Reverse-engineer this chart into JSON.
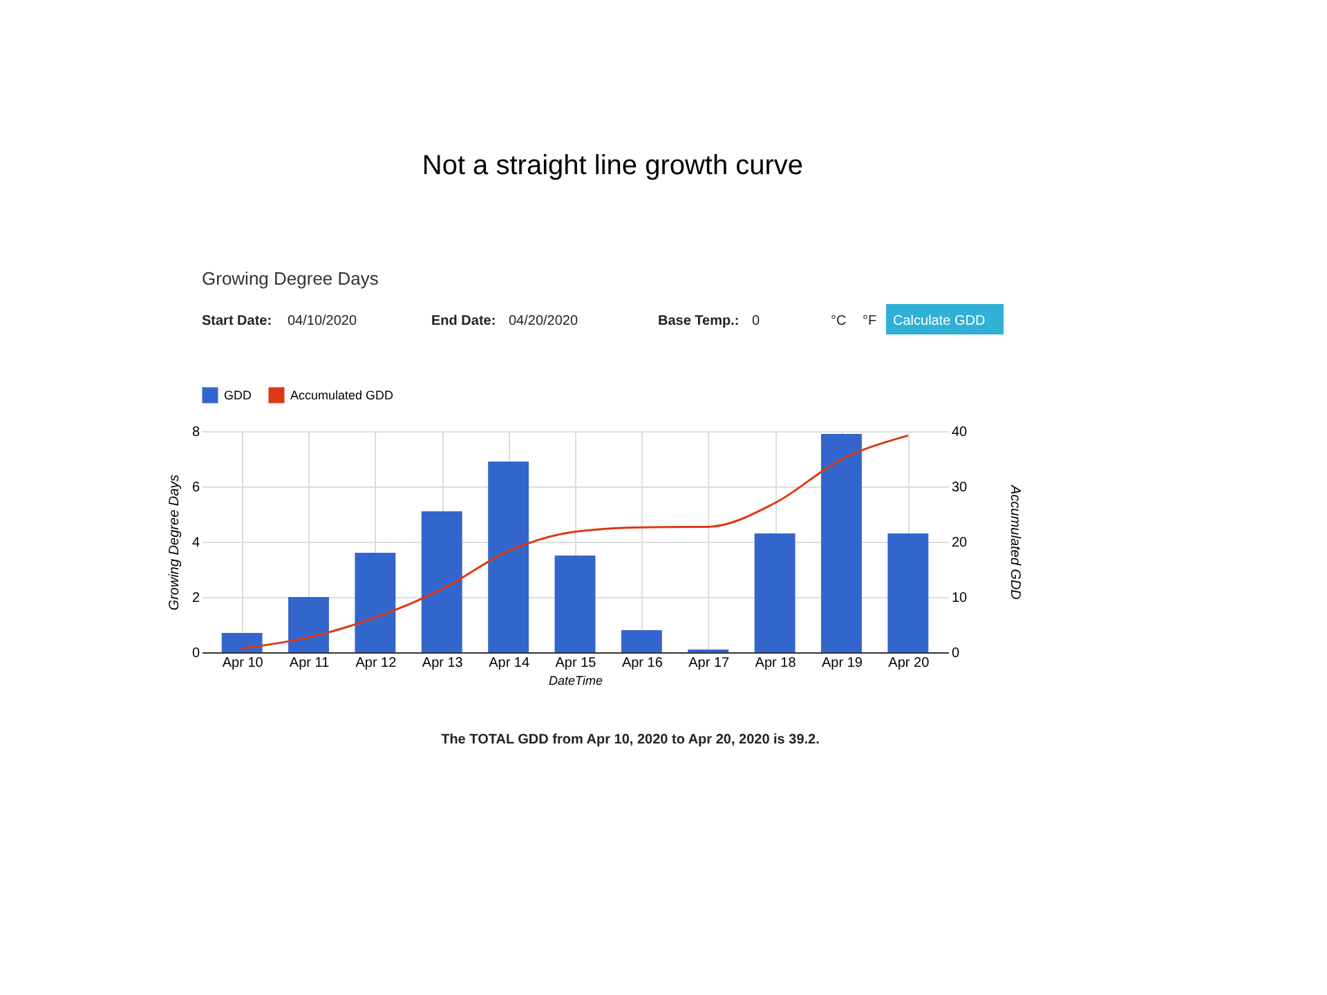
{
  "chart_data": {
    "type": "bar",
    "title": "Not a  straight line growth curve",
    "subtitle": "Growing Degree Days",
    "categories": [
      "Apr 10",
      "Apr 11",
      "Apr 12",
      "Apr 13",
      "Apr 14",
      "Apr 15",
      "Apr 16",
      "Apr 17",
      "Apr 18",
      "Apr 19",
      "Apr 20"
    ],
    "series": [
      {
        "name": "GDD",
        "color": "#3366cc",
        "values": [
          0.7,
          2.0,
          3.6,
          5.1,
          6.9,
          3.5,
          0.8,
          0.1,
          4.3,
          7.9,
          4.3
        ]
      },
      {
        "name": "Accumulated GDD",
        "type": "line",
        "axis": "y2",
        "color": "#dc3912",
        "values": [
          0.7,
          2.7,
          6.3,
          11.4,
          18.3,
          21.8,
          22.6,
          22.7,
          27.0,
          34.9,
          39.2
        ]
      }
    ],
    "xlabel": "DateTime",
    "ylabel": "Growing Degree Days",
    "y2label": "Accumulated GDD",
    "ylim": [
      0,
      8
    ],
    "yticks": [
      0,
      2,
      4,
      6,
      8
    ],
    "y2lim": [
      0,
      40
    ],
    "y2ticks": [
      0,
      10,
      20,
      30,
      40
    ],
    "grid": true,
    "legend": "top left",
    "marker": "none",
    "line_style": "solid",
    "annotations": [
      "Start Date:",
      "04/10/2020",
      "End Date:",
      "04/20/2020",
      "Base Temp.:",
      "0",
      "°C",
      "°F",
      "Calculate GDD",
      "The TOTAL GDD from Apr 10, 2020 to Apr 20, 2020 is 39.2."
    ]
  }
}
